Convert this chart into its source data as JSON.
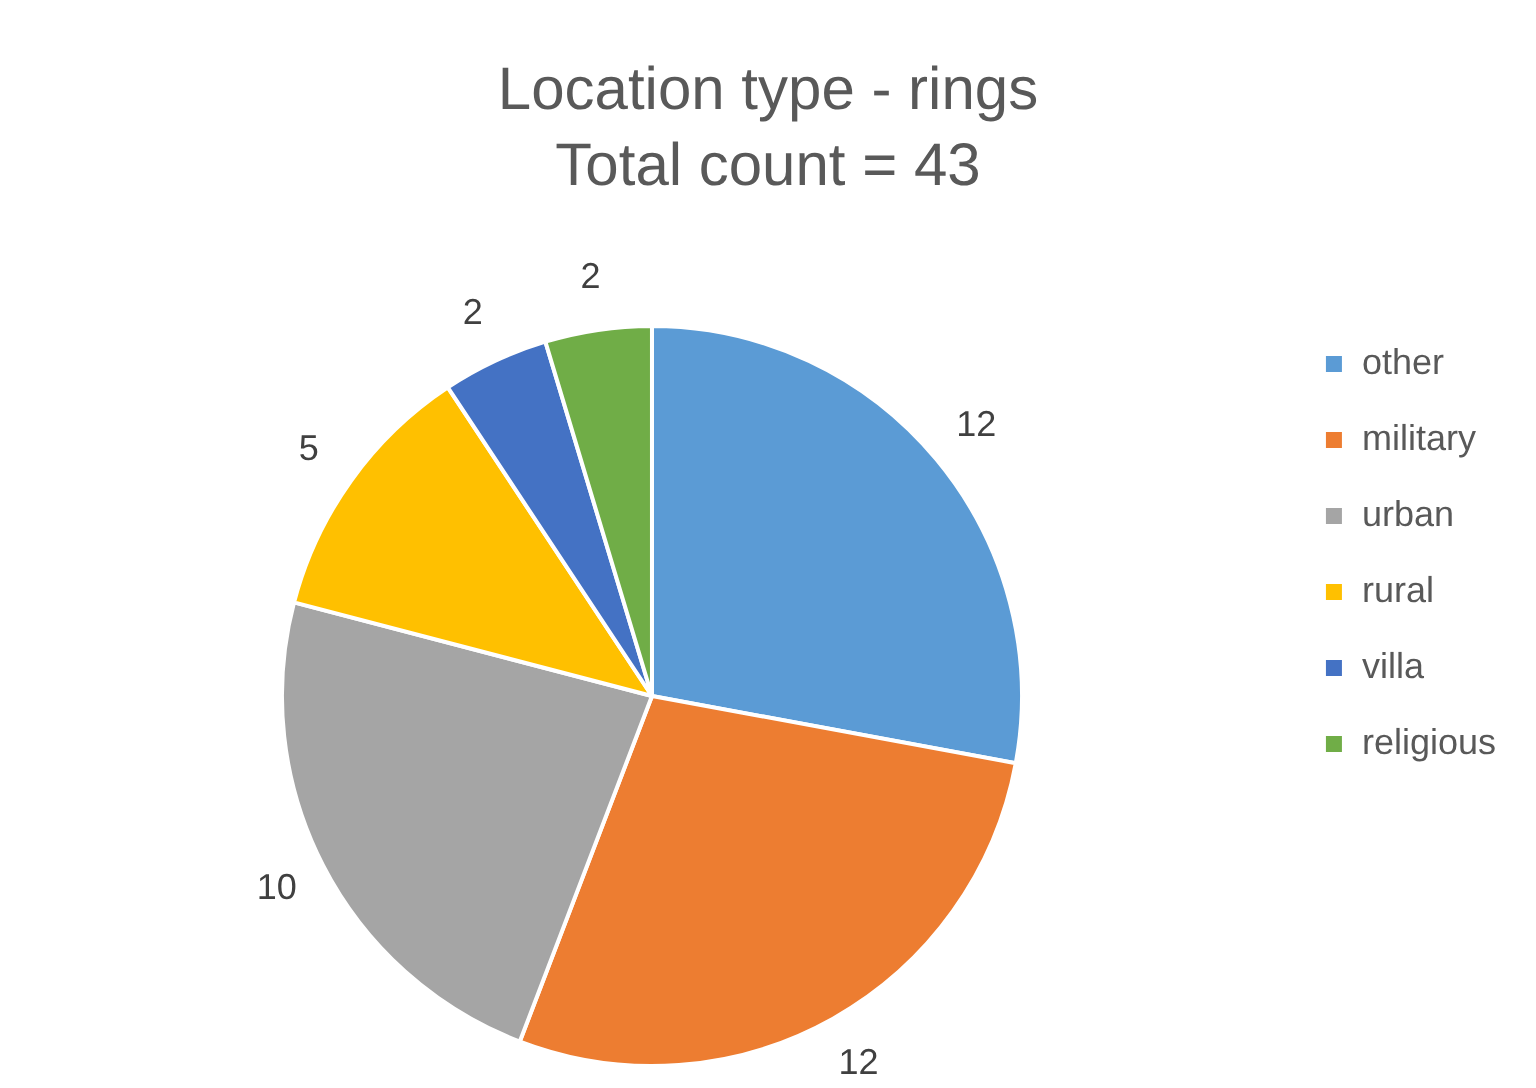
{
  "chart_data": {
    "type": "pie",
    "title": "Location type - rings",
    "subtitle": "Total count = 43",
    "categories": [
      "other",
      "military",
      "urban",
      "rural",
      "villa",
      "religious"
    ],
    "values": [
      12,
      12,
      10,
      5,
      2,
      2
    ],
    "colors": [
      "#5b9bd5",
      "#ed7d31",
      "#a5a5a5",
      "#ffc000",
      "#4472c4",
      "#70ad47"
    ],
    "data_labels": true,
    "legend": "right"
  }
}
